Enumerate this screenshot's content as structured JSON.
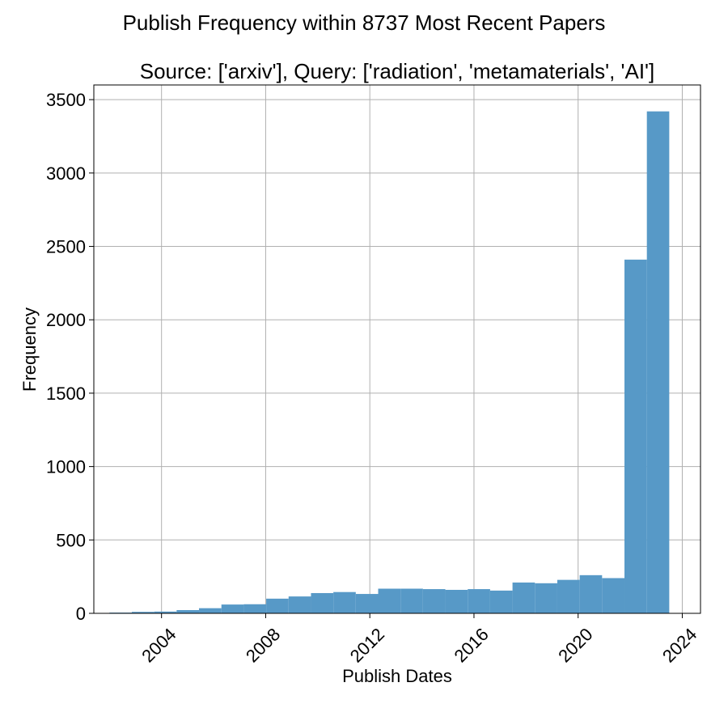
{
  "figure_title": "Publish Frequency within 8737 Most Recent Papers",
  "chart_data": {
    "type": "bar",
    "title": "Source: ['arxiv'], Query: ['radiation', 'metamaterials', 'AI']",
    "xlabel": "Publish Dates",
    "ylabel": "Frequency",
    "x_ticks": [
      "2004",
      "2008",
      "2012",
      "2016",
      "2020",
      "2024"
    ],
    "y_ticks": [
      "0",
      "500",
      "1000",
      "1500",
      "2000",
      "2500",
      "3000",
      "3500"
    ],
    "xlim": [
      2001.4,
      2024.7
    ],
    "ylim": [
      0,
      3600
    ],
    "grid": true,
    "bar_color": "#5799c7",
    "bins": [
      {
        "start": 2002.0,
        "end": 2002.86,
        "value": 5
      },
      {
        "start": 2002.86,
        "end": 2003.72,
        "value": 10
      },
      {
        "start": 2003.72,
        "end": 2004.58,
        "value": 12
      },
      {
        "start": 2004.58,
        "end": 2005.44,
        "value": 22
      },
      {
        "start": 2005.44,
        "end": 2006.3,
        "value": 35
      },
      {
        "start": 2006.3,
        "end": 2007.16,
        "value": 60
      },
      {
        "start": 2007.16,
        "end": 2008.02,
        "value": 62
      },
      {
        "start": 2008.02,
        "end": 2008.88,
        "value": 100
      },
      {
        "start": 2008.88,
        "end": 2009.74,
        "value": 115
      },
      {
        "start": 2009.74,
        "end": 2010.6,
        "value": 138
      },
      {
        "start": 2010.6,
        "end": 2011.46,
        "value": 145
      },
      {
        "start": 2011.46,
        "end": 2012.32,
        "value": 132
      },
      {
        "start": 2012.32,
        "end": 2013.18,
        "value": 168
      },
      {
        "start": 2013.18,
        "end": 2014.04,
        "value": 168
      },
      {
        "start": 2014.04,
        "end": 2014.9,
        "value": 165
      },
      {
        "start": 2014.9,
        "end": 2015.76,
        "value": 160
      },
      {
        "start": 2015.76,
        "end": 2016.62,
        "value": 165
      },
      {
        "start": 2016.62,
        "end": 2017.48,
        "value": 155
      },
      {
        "start": 2017.48,
        "end": 2018.34,
        "value": 210
      },
      {
        "start": 2018.34,
        "end": 2019.2,
        "value": 205
      },
      {
        "start": 2019.2,
        "end": 2020.06,
        "value": 228
      },
      {
        "start": 2020.06,
        "end": 2020.92,
        "value": 260
      },
      {
        "start": 2020.92,
        "end": 2021.78,
        "value": 240
      },
      {
        "start": 2021.78,
        "end": 2022.64,
        "value": 2410
      },
      {
        "start": 2022.64,
        "end": 2023.5,
        "value": 3420
      }
    ]
  }
}
